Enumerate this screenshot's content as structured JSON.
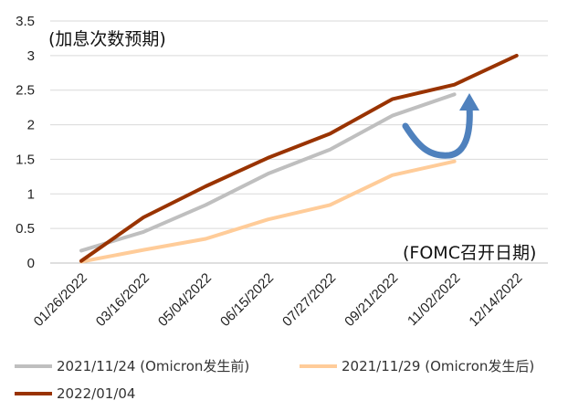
{
  "chart_data": {
    "type": "line",
    "title": "",
    "xlabel": "(FOMC召开日期)",
    "ylabel": "(加息次数预期)",
    "ylim": [
      0,
      3.5
    ],
    "yticks": [
      "0",
      "0.5",
      "1",
      "1.5",
      "2",
      "2.5",
      "3",
      "3.5"
    ],
    "categories": [
      "01/26/2022",
      "03/16/2022",
      "05/04/2022",
      "06/15/2022",
      "07/27/2022",
      "09/21/2022",
      "11/02/2022",
      "12/14/2022"
    ],
    "grid": "horizontal",
    "legend_position": "bottom",
    "series": [
      {
        "name": "2021/11/24 (Omicron发生前)",
        "color": "#BFBFBF",
        "values": [
          0.18,
          0.45,
          0.84,
          1.29,
          1.64,
          2.13,
          2.44,
          null
        ]
      },
      {
        "name": "2021/11/29 (Omicron发生后)",
        "color": "#FFCC99",
        "values": [
          0.02,
          0.19,
          0.35,
          0.63,
          0.84,
          1.27,
          1.47,
          null
        ]
      },
      {
        "name": "2022/01/04",
        "color": "#993300",
        "values": [
          0.03,
          0.66,
          1.11,
          1.52,
          1.87,
          2.37,
          2.58,
          3.0
        ]
      }
    ],
    "annotations": [
      "curved arrow from the 2021/11/24 line up toward the 2022/01/04 line near 11/02/2022"
    ],
    "arrow_color": "#4F81BD"
  }
}
